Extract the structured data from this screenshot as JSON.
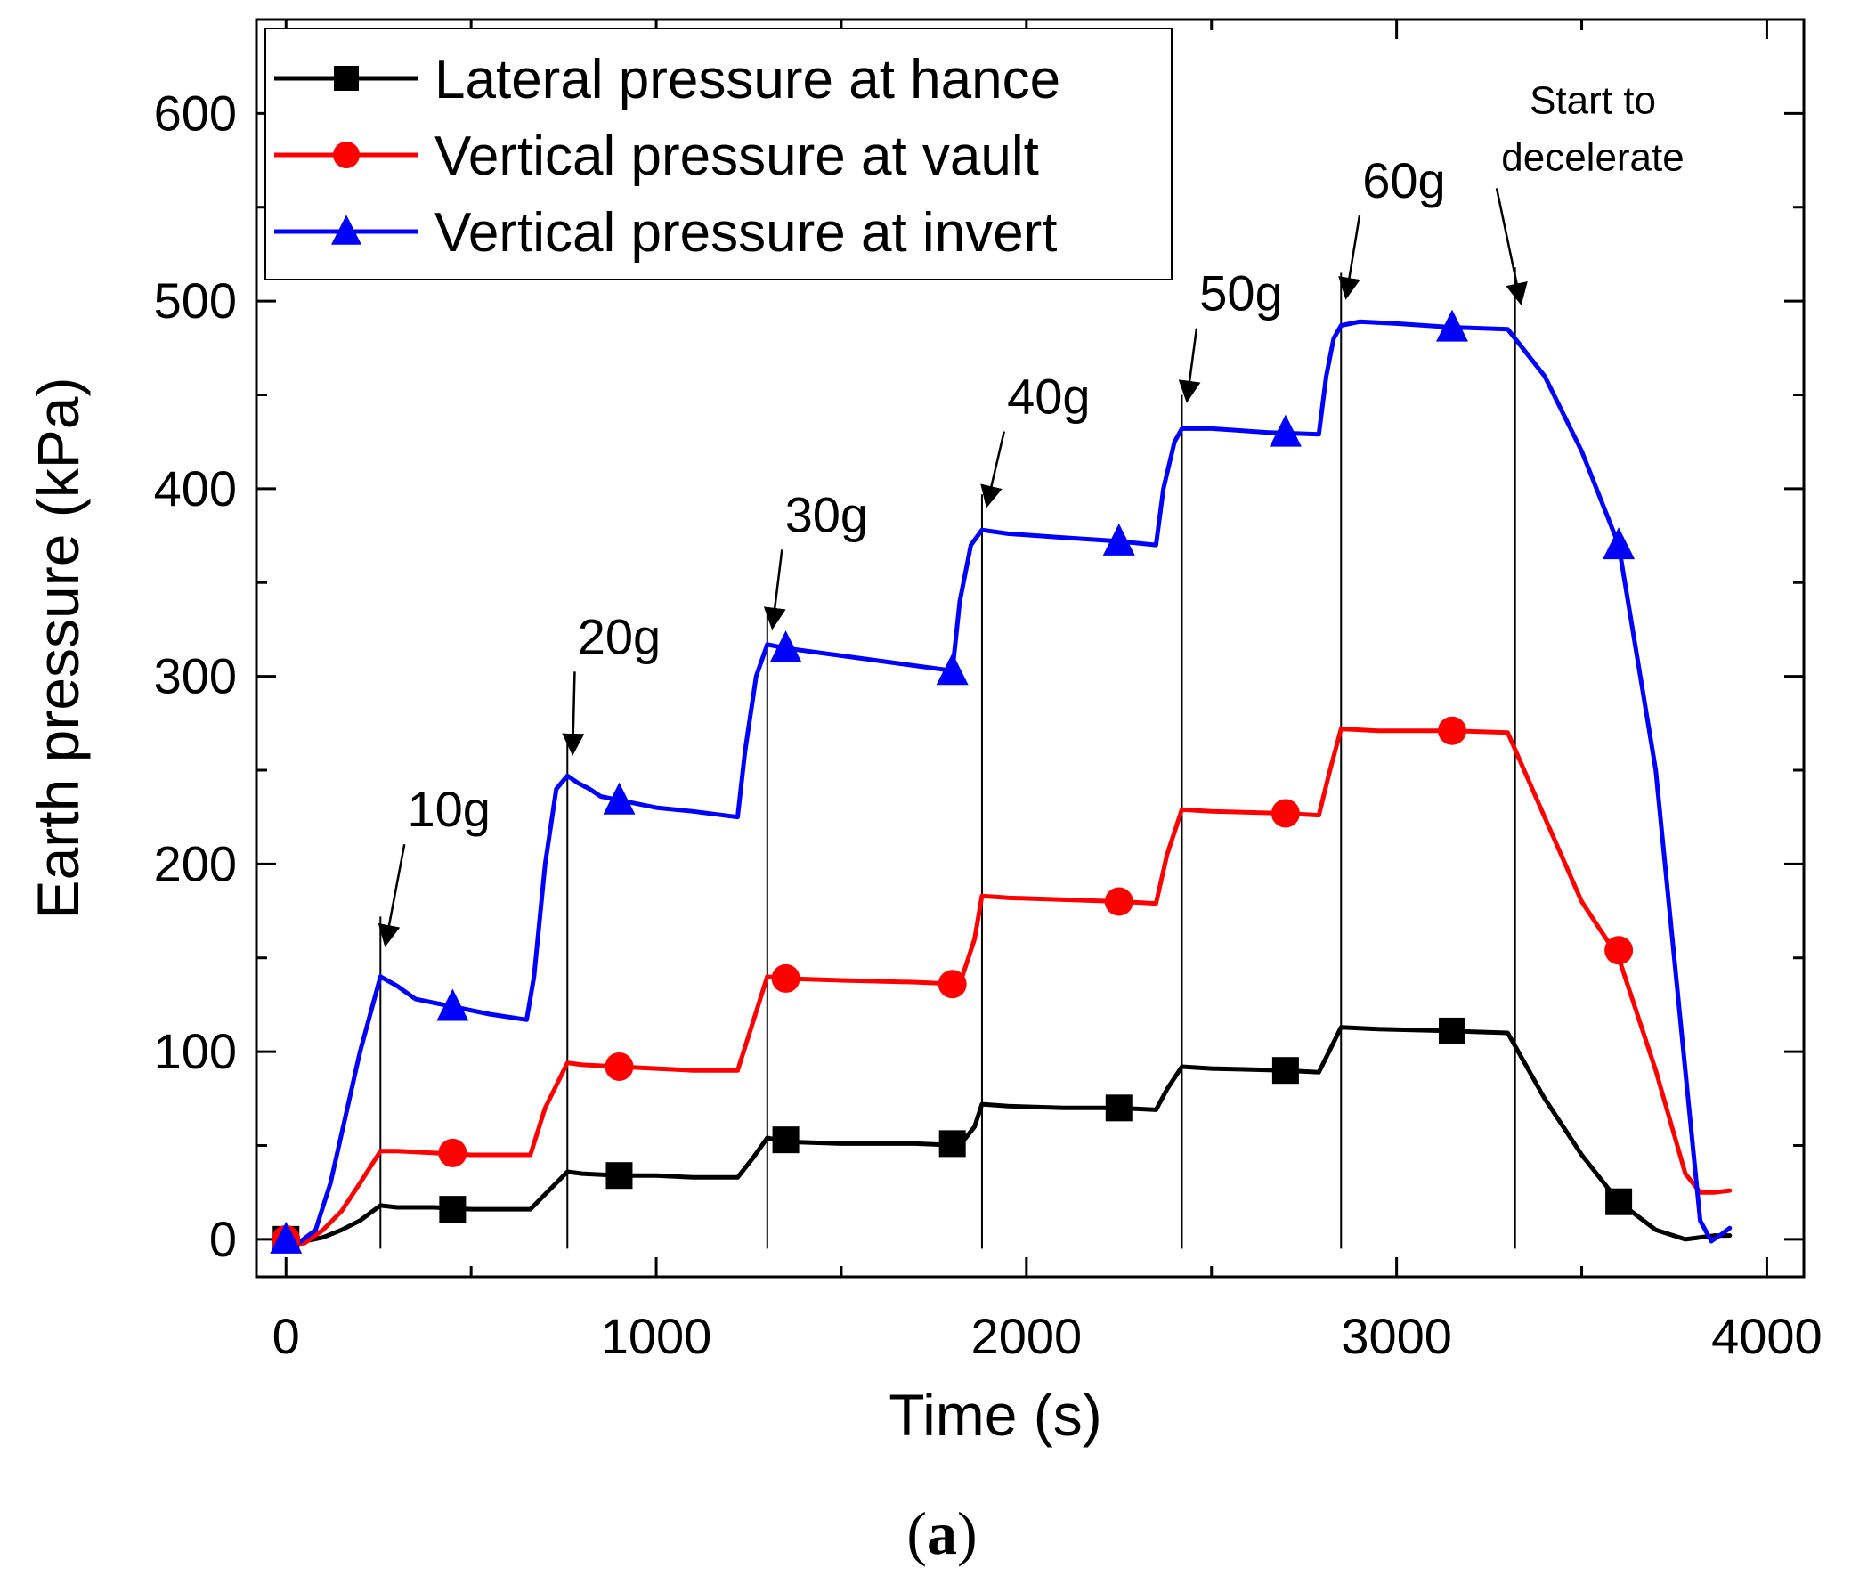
{
  "chart_data": {
    "type": "line",
    "xlabel": "Time (s)",
    "ylabel": "Earth pressure (kPa)",
    "caption_letter": "a",
    "xlim": [
      -80,
      4100
    ],
    "ylim": [
      -20,
      650
    ],
    "xticks": [
      0,
      1000,
      2000,
      3000,
      4000
    ],
    "xtick_labels": [
      "0",
      "1000",
      "2000",
      "3000",
      "4000"
    ],
    "yticks": [
      0,
      100,
      200,
      300,
      400,
      500,
      600
    ],
    "ytick_labels": [
      "0",
      "100",
      "200",
      "300",
      "400",
      "500",
      "600"
    ],
    "grid": false,
    "legend_position": "top-left",
    "series": [
      {
        "name": "Lateral pressure at hance",
        "color": "#000000",
        "marker": "square",
        "x": [
          0,
          50,
          100,
          150,
          200,
          255,
          300,
          400,
          500,
          600,
          660,
          700,
          760,
          800,
          900,
          1000,
          1100,
          1220,
          1260,
          1300,
          1350,
          1500,
          1700,
          1820,
          1860,
          1880,
          1950,
          2100,
          2250,
          2350,
          2380,
          2420,
          2500,
          2700,
          2790,
          2820,
          2850,
          2950,
          3150,
          3300,
          3400,
          3500,
          3600,
          3700,
          3780,
          3820,
          3860,
          3900
        ],
        "y": [
          0,
          -1,
          1,
          5,
          10,
          18,
          17,
          17,
          16,
          16,
          16,
          24,
          36,
          35,
          34,
          34,
          33,
          33,
          43,
          54,
          52,
          51,
          51,
          50,
          60,
          72,
          71,
          70,
          70,
          69,
          80,
          92,
          91,
          90,
          89,
          101,
          113,
          112,
          111,
          110,
          75,
          45,
          20,
          5,
          0,
          1,
          2,
          2
        ],
        "marker_x": [
          0,
          450,
          900,
          1350,
          1800,
          2250,
          2700,
          3150,
          3600
        ],
        "marker_y": [
          0,
          16,
          34,
          53,
          51,
          70,
          90,
          111,
          20
        ]
      },
      {
        "name": "Vertical pressure at vault",
        "color": "#ff0000",
        "marker": "circle",
        "x": [
          0,
          50,
          100,
          150,
          200,
          255,
          300,
          400,
          500,
          600,
          660,
          700,
          760,
          800,
          900,
          1000,
          1100,
          1220,
          1260,
          1300,
          1350,
          1500,
          1700,
          1820,
          1860,
          1880,
          1950,
          2100,
          2250,
          2350,
          2380,
          2420,
          2500,
          2700,
          2790,
          2820,
          2850,
          2950,
          3150,
          3300,
          3400,
          3500,
          3600,
          3700,
          3780,
          3820,
          3860,
          3900
        ],
        "y": [
          -3,
          -2,
          5,
          15,
          30,
          47,
          47,
          46,
          45,
          45,
          45,
          70,
          94,
          93,
          92,
          91,
          90,
          90,
          115,
          140,
          139,
          138,
          137,
          136,
          160,
          183,
          182,
          181,
          180,
          179,
          205,
          229,
          228,
          227,
          226,
          250,
          272,
          271,
          271,
          270,
          225,
          180,
          150,
          90,
          35,
          25,
          25,
          26
        ],
        "marker_x": [
          0,
          450,
          900,
          1350,
          1800,
          2250,
          2700,
          3150,
          3600
        ],
        "marker_y": [
          0,
          46,
          92,
          139,
          136,
          180,
          227,
          271,
          154
        ]
      },
      {
        "name": "Vertical pressure at invert",
        "color": "#0000ff",
        "marker": "triangle",
        "x": [
          0,
          40,
          80,
          120,
          160,
          200,
          255,
          300,
          350,
          450,
          550,
          650,
          670,
          700,
          730,
          760,
          790,
          820,
          850,
          900,
          1000,
          1100,
          1220,
          1240,
          1270,
          1300,
          1350,
          1500,
          1650,
          1800,
          1820,
          1850,
          1880,
          1950,
          2100,
          2250,
          2350,
          2370,
          2400,
          2420,
          2500,
          2650,
          2790,
          2810,
          2830,
          2850,
          2900,
          3000,
          3150,
          3300,
          3400,
          3500,
          3600,
          3700,
          3780,
          3820,
          3850,
          3880,
          3900
        ],
        "y": [
          -2,
          -1,
          5,
          30,
          65,
          100,
          140,
          135,
          128,
          124,
          120,
          117,
          140,
          200,
          240,
          247,
          243,
          240,
          236,
          234,
          230,
          228,
          225,
          260,
          300,
          317,
          315,
          311,
          307,
          303,
          340,
          370,
          378,
          376,
          374,
          372,
          370,
          400,
          425,
          432,
          432,
          430,
          429,
          460,
          480,
          487,
          489,
          488,
          486,
          485,
          460,
          420,
          370,
          250,
          90,
          10,
          -1,
          3,
          6
        ],
        "marker_x": [
          0,
          450,
          900,
          1350,
          1800,
          2250,
          2700,
          3150,
          3600
        ],
        "marker_y": [
          0,
          124,
          234,
          315,
          303,
          372,
          430,
          486,
          370
        ]
      }
    ],
    "stage_lines": [
      {
        "x": 255,
        "y_top": 172
      },
      {
        "x": 760,
        "y_top": 267
      },
      {
        "x": 1300,
        "y_top": 333
      },
      {
        "x": 1880,
        "y_top": 397
      },
      {
        "x": 2420,
        "y_top": 450
      },
      {
        "x": 2850,
        "y_top": 515
      },
      {
        "x": 3320,
        "y_top": 518
      }
    ],
    "annotations": [
      {
        "lines": [
          "10g"
        ],
        "x": 440,
        "y": 220,
        "arrow_to_y": 158
      },
      {
        "lines": [
          "20g"
        ],
        "x": 900,
        "y": 312,
        "arrow_to_y": 260
      },
      {
        "lines": [
          "30g"
        ],
        "x": 1460,
        "y": 377,
        "arrow_to_y": 327
      },
      {
        "lines": [
          "40g"
        ],
        "x": 2060,
        "y": 440,
        "arrow_to_y": 392
      },
      {
        "lines": [
          "50g"
        ],
        "x": 2580,
        "y": 495,
        "arrow_to_y": 448
      },
      {
        "lines": [
          "60g"
        ],
        "x": 3020,
        "y": 555,
        "arrow_to_y": 503
      },
      {
        "lines": [
          "Start to",
          "decelerate"
        ],
        "x": 3530,
        "y": 600,
        "arrow_to_y": 500
      }
    ]
  }
}
